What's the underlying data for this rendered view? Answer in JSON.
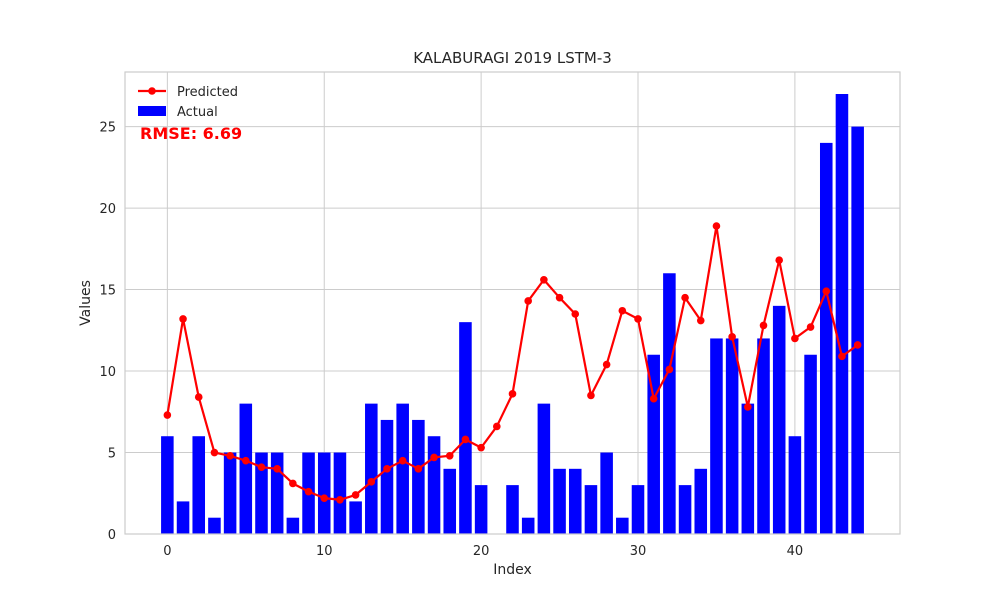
{
  "chart_data": {
    "type": "bar+line",
    "title": "KALABURAGI 2019 LSTM-3",
    "xlabel": "Index",
    "ylabel": "Values",
    "xlim": [
      -2.7,
      46.7
    ],
    "ylim": [
      0,
      28.35
    ],
    "xticks": [
      0,
      10,
      20,
      30,
      40
    ],
    "yticks": [
      0,
      5,
      10,
      15,
      20,
      25
    ],
    "grid": true,
    "legend_position": "top-left",
    "annotation": "RMSE: 6.69",
    "colors": {
      "actual": "#0000ff",
      "predicted": "#ff0000",
      "grid": "#cccccc",
      "frame": "#cccccc"
    },
    "series": [
      {
        "name": "Predicted",
        "type": "line",
        "x": [
          0,
          1,
          2,
          3,
          4,
          5,
          6,
          7,
          8,
          9,
          10,
          11,
          12,
          13,
          14,
          15,
          16,
          17,
          18,
          19,
          20,
          21,
          22,
          23,
          24,
          25,
          26,
          27,
          28,
          29,
          30,
          31,
          32,
          33,
          34,
          35,
          36,
          37,
          38,
          39,
          40,
          41,
          42,
          43,
          44
        ],
        "values": [
          7.3,
          13.2,
          8.4,
          5.0,
          4.8,
          4.5,
          4.1,
          4.0,
          3.1,
          2.6,
          2.2,
          2.1,
          2.4,
          3.2,
          4.0,
          4.5,
          4.0,
          4.7,
          4.8,
          5.8,
          5.3,
          6.6,
          8.6,
          14.3,
          15.6,
          14.5,
          13.5,
          8.5,
          10.4,
          13.7,
          13.2,
          8.3,
          10.1,
          14.5,
          13.1,
          18.9,
          12.1,
          7.8,
          12.8,
          16.8,
          12.0,
          12.7,
          14.9,
          10.9,
          11.6
        ]
      },
      {
        "name": "Actual",
        "type": "bar",
        "x": [
          0,
          1,
          2,
          3,
          4,
          5,
          6,
          7,
          8,
          9,
          10,
          11,
          12,
          13,
          14,
          15,
          16,
          17,
          18,
          19,
          20,
          21,
          22,
          23,
          24,
          25,
          26,
          27,
          28,
          29,
          30,
          31,
          32,
          33,
          34,
          35,
          36,
          37,
          38,
          39,
          40,
          41,
          42,
          43,
          44
        ],
        "values": [
          6,
          2,
          6,
          1,
          5,
          8,
          5,
          5,
          1,
          5,
          5,
          5,
          2,
          8,
          7,
          8,
          7,
          6,
          4,
          13,
          3,
          0,
          3,
          1,
          8,
          4,
          4,
          3,
          5,
          1,
          3,
          11,
          16,
          3,
          4,
          12,
          12,
          8,
          12,
          14,
          6,
          11,
          24,
          27,
          25
        ]
      }
    ]
  }
}
